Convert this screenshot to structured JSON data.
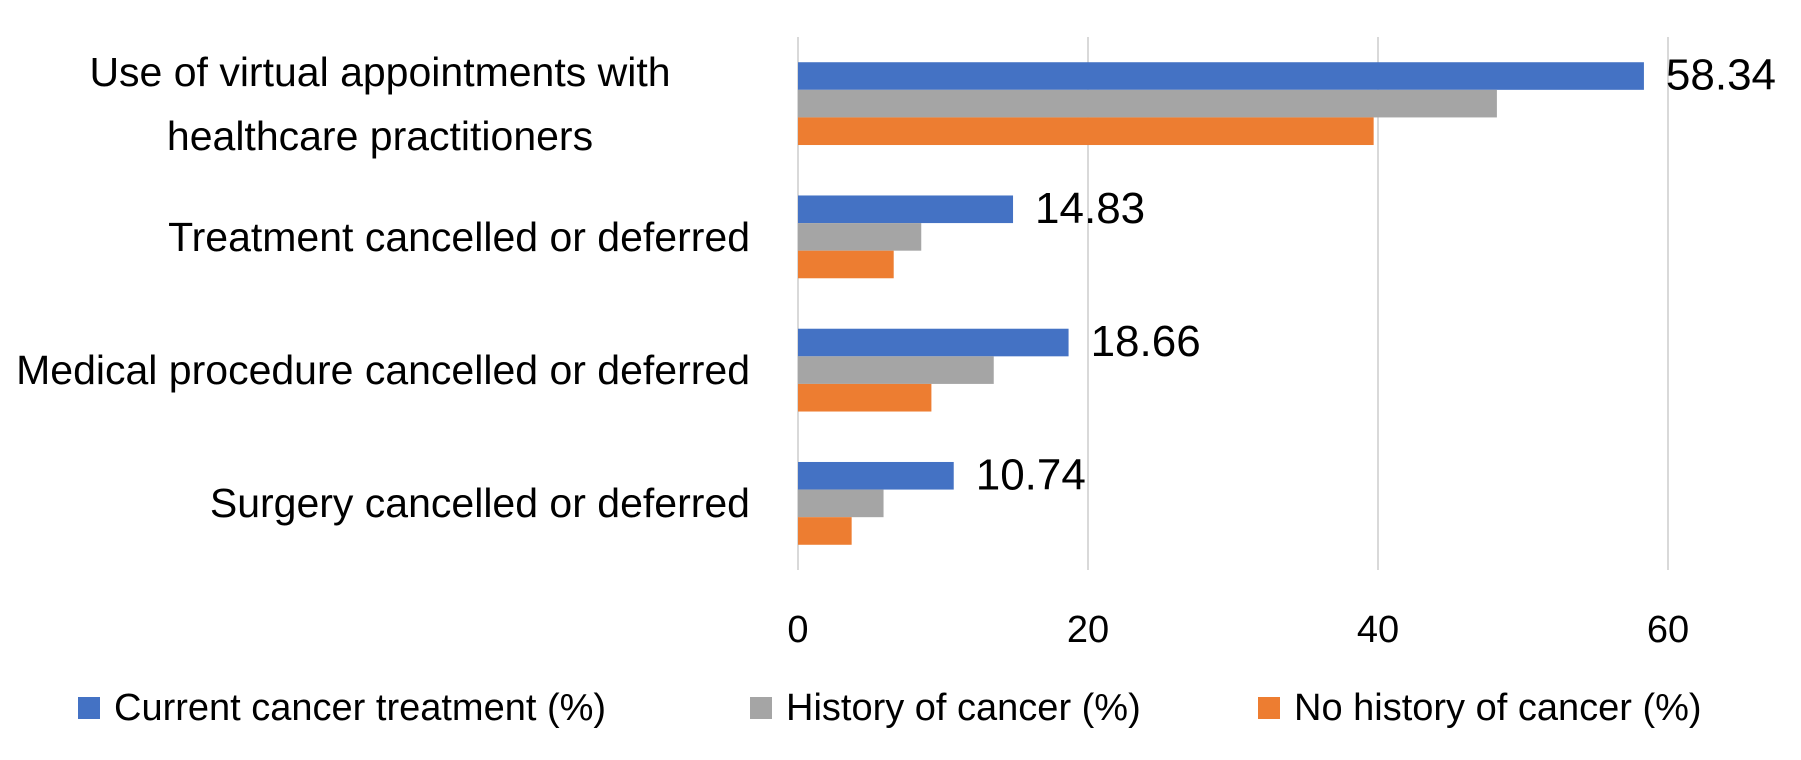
{
  "chart_data": {
    "type": "bar",
    "orientation": "horizontal",
    "categories": [
      "Use of virtual appointments with healthcare practitioners",
      "Treatment cancelled or deferred",
      "Medical procedure cancelled or deferred",
      "Surgery cancelled or deferred"
    ],
    "series": [
      {
        "name": "Current cancer treatment (%)",
        "color": "#4472c4",
        "values": [
          58.34,
          14.83,
          18.66,
          10.74
        ],
        "data_labels": true
      },
      {
        "name": "History of cancer (%)",
        "color": "#a5a5a5",
        "values": [
          48.2,
          8.5,
          13.5,
          5.9
        ]
      },
      {
        "name": "No history of cancer (%)",
        "color": "#ed7d31",
        "values": [
          39.7,
          6.6,
          9.2,
          3.7
        ]
      }
    ],
    "xlim": [
      0,
      60
    ],
    "xticks": [
      0,
      20,
      40,
      60
    ],
    "grid": true,
    "legend": "bottom"
  }
}
